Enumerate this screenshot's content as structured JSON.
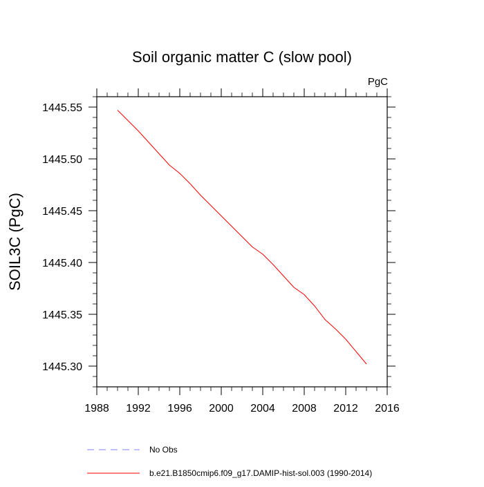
{
  "colors": {
    "series": "#ff0000",
    "obs": "#8080ff",
    "axis": "#000000",
    "background": "#ffffff"
  },
  "chart_data": {
    "type": "line",
    "title": "Soil organic matter C (slow pool)",
    "units_label": "PgC",
    "xlabel": "",
    "ylabel": "SOIL3C  (PgC)",
    "xlim": [
      1988,
      2016
    ],
    "ylim": [
      1445.28,
      1445.56
    ],
    "x_ticks": [
      1988,
      1992,
      1996,
      2000,
      2004,
      2008,
      2012,
      2016
    ],
    "y_ticks": [
      1445.3,
      1445.35,
      1445.4,
      1445.45,
      1445.5,
      1445.55
    ],
    "y_tick_labels": [
      "1445.30",
      "1445.35",
      "1445.40",
      "1445.45",
      "1445.50",
      "1445.55"
    ],
    "grid": false,
    "legend_position": "bottom",
    "series": [
      {
        "name": "b.e21.B1850cmip6.f09_g17.DAMIP-hist-sol.003 (1990-2014)",
        "style": "solid",
        "x": [
          1990,
          1991,
          1992,
          1993,
          1994,
          1995,
          1996,
          1997,
          1998,
          1999,
          2000,
          2001,
          2002,
          2003,
          2004,
          2005,
          2006,
          2007,
          2008,
          2009,
          2010,
          2011,
          2012,
          2013,
          2014
        ],
        "y": [
          1445.547,
          1445.537,
          1445.527,
          1445.516,
          1445.505,
          1445.494,
          1445.486,
          1445.476,
          1445.465,
          1445.455,
          1445.445,
          1445.435,
          1445.425,
          1445.415,
          1445.408,
          1445.398,
          1445.387,
          1445.376,
          1445.369,
          1445.358,
          1445.345,
          1445.336,
          1445.326,
          1445.314,
          1445.302
        ]
      }
    ],
    "legend": [
      {
        "label": "No Obs",
        "style": "dashed",
        "color": "#8080ff"
      },
      {
        "label": "b.e21.B1850cmip6.f09_g17.DAMIP-hist-sol.003 (1990-2014)",
        "style": "solid",
        "color": "#ff0000"
      }
    ]
  }
}
